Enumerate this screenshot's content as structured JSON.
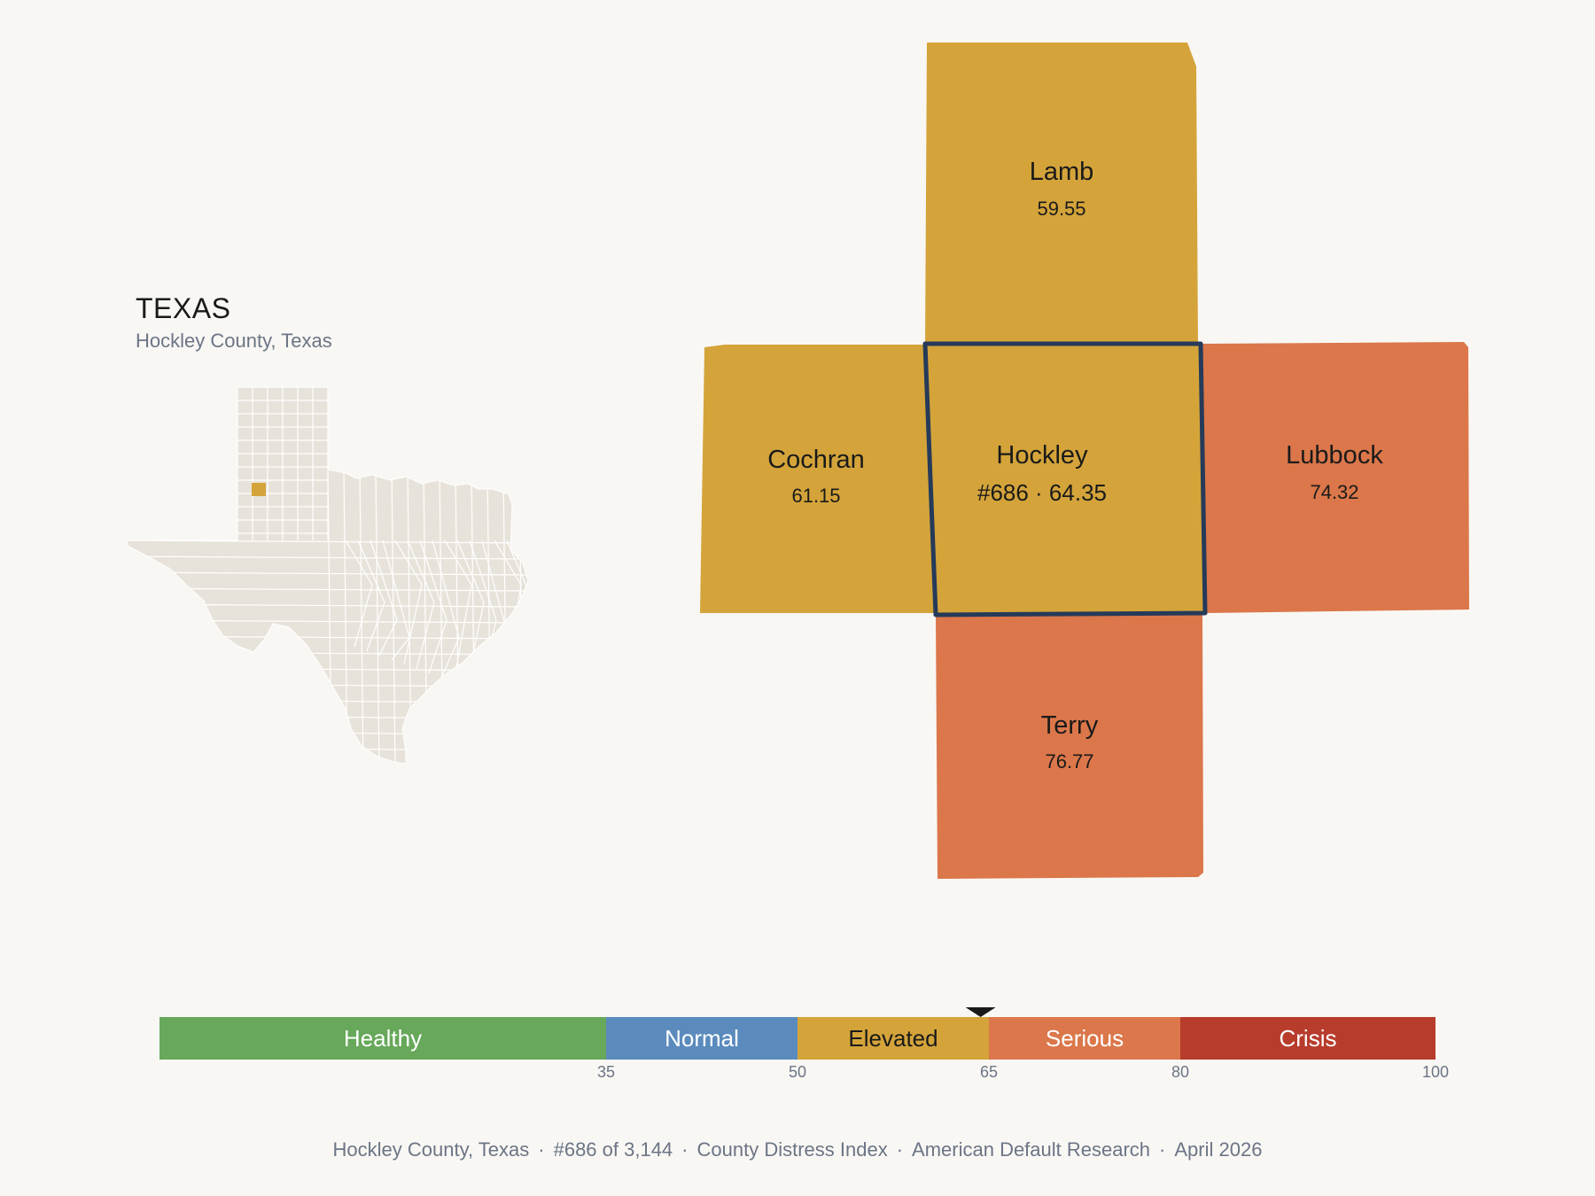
{
  "header": {
    "state": "TEXAS",
    "subtitle": "Hockley County, Texas"
  },
  "colors": {
    "background": "#f9f7f4",
    "state_fill": "#e8e3da",
    "state_lines": "#ffffff",
    "highlight": "#d4a43a",
    "focus_border": "#263a59"
  },
  "counties": [
    {
      "id": "lamb",
      "name": "Lamb",
      "value": "59.55",
      "color": "#d4a43a"
    },
    {
      "id": "cochran",
      "name": "Cochran",
      "value": "61.15",
      "color": "#d4a43a"
    },
    {
      "id": "hockley",
      "name": "Hockley",
      "value": "#686 · 64.35",
      "color": "#d4a43a",
      "focus": true
    },
    {
      "id": "lubbock",
      "name": "Lubbock",
      "value": "74.32",
      "color": "#db774a"
    },
    {
      "id": "terry",
      "name": "Terry",
      "value": "76.77",
      "color": "#db774a"
    }
  ],
  "scale": {
    "min": 0,
    "max": 100,
    "marker_value": 64.35,
    "segments": [
      {
        "label": "Healthy",
        "from": 0,
        "to": 35,
        "color": "#67a85a",
        "text_color": "#ffffff"
      },
      {
        "label": "Normal",
        "from": 35,
        "to": 50,
        "color": "#5b8bbd",
        "text_color": "#ffffff"
      },
      {
        "label": "Elevated",
        "from": 50,
        "to": 65,
        "color": "#d4a43a",
        "text_color": "#1a1a1a"
      },
      {
        "label": "Serious",
        "from": 65,
        "to": 80,
        "color": "#db774a",
        "text_color": "#ffffff"
      },
      {
        "label": "Crisis",
        "from": 80,
        "to": 100,
        "color": "#b83c2c",
        "text_color": "#ffffff"
      }
    ],
    "ticks": [
      "35",
      "50",
      "65",
      "80",
      "100"
    ]
  },
  "footer": {
    "county": "Hockley County, Texas",
    "rank": "#686 of 3,144",
    "index": "County Distress Index",
    "source": "American Default Research",
    "date": "April 2026",
    "separator": "·"
  }
}
